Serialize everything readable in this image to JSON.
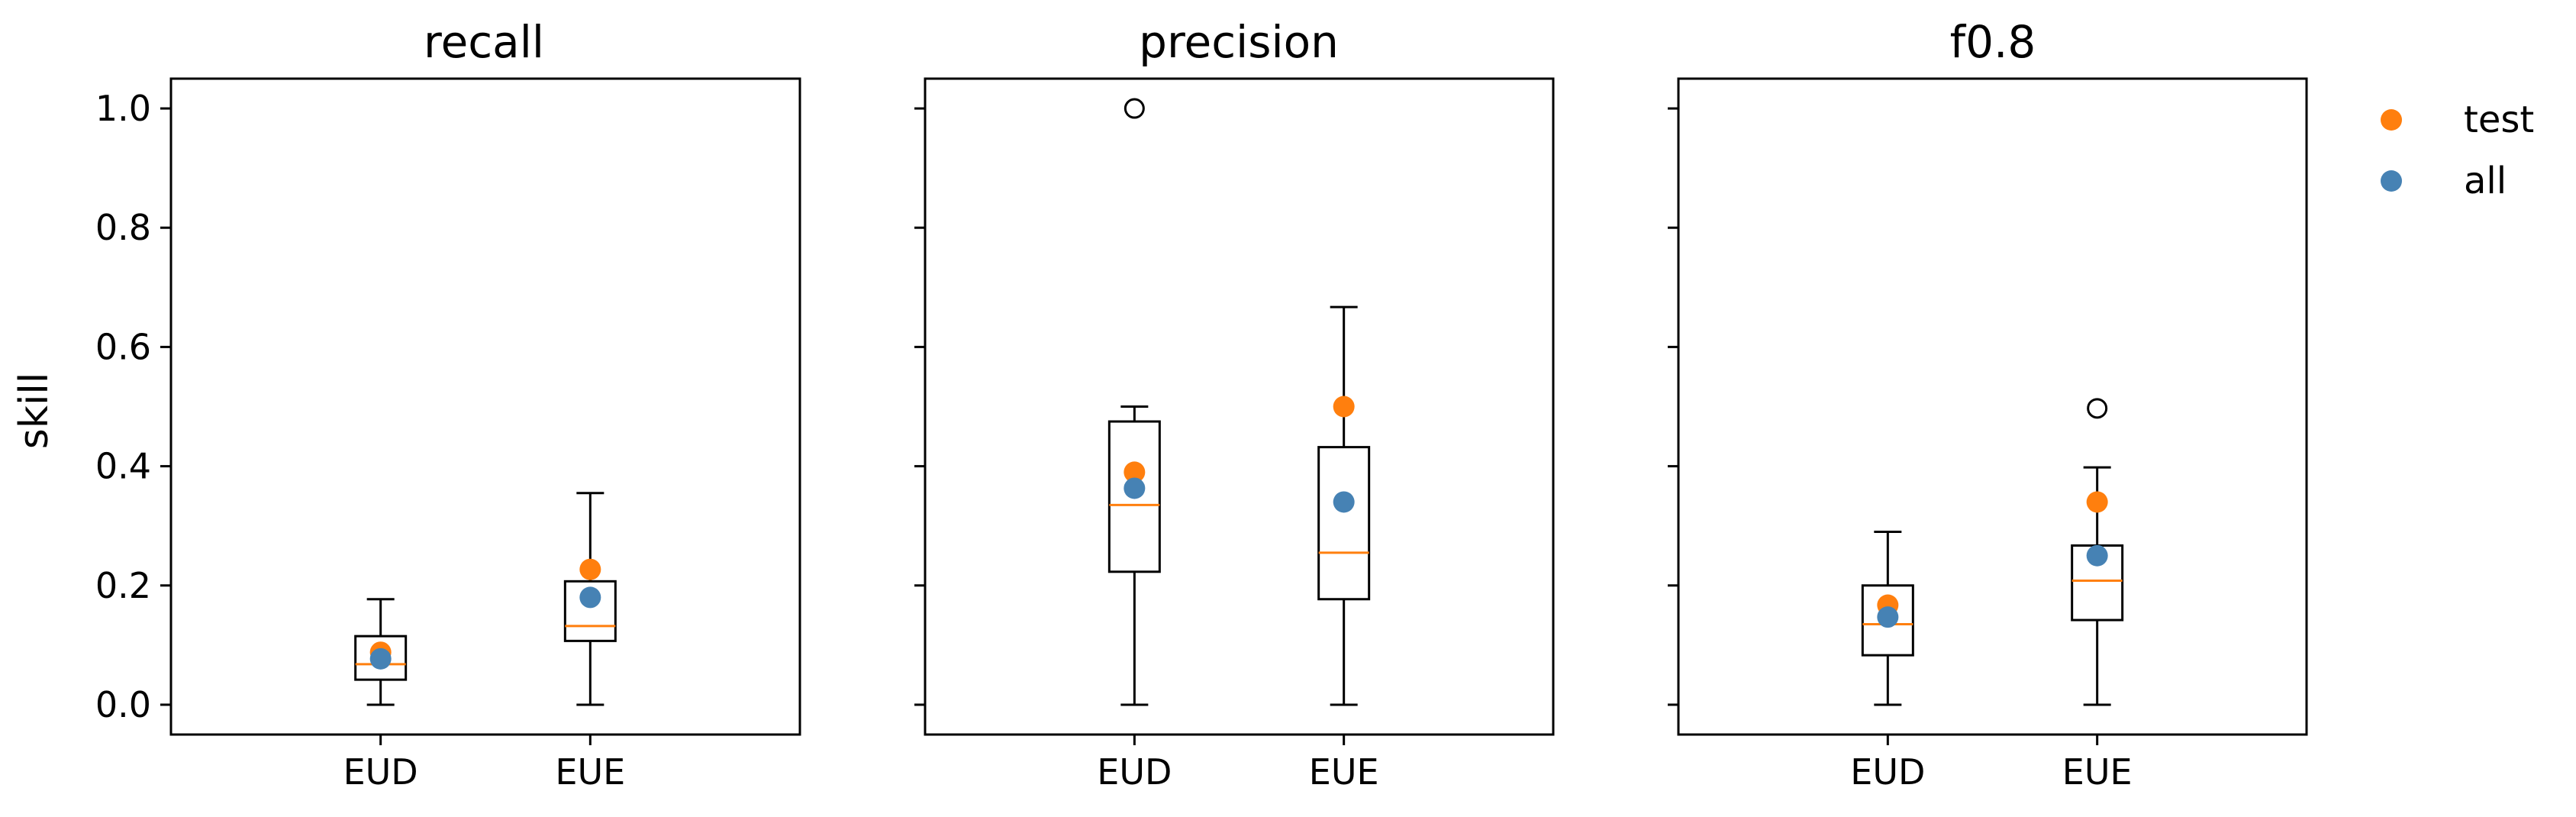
{
  "chart_data": [
    {
      "type": "box",
      "title": "recall",
      "ylabel": "skill",
      "categories": [
        "EUD",
        "EUE"
      ],
      "ylim": [
        -0.05,
        1.05
      ],
      "yticks": [
        "0.0",
        "0.2",
        "0.4",
        "0.6",
        "0.8",
        "1.0"
      ],
      "boxes": [
        {
          "category": "EUD",
          "whislo": 0.0,
          "q1": 0.042,
          "median": 0.068,
          "q3": 0.115,
          "whishi": 0.177,
          "fliers": []
        },
        {
          "category": "EUE",
          "whislo": 0.0,
          "q1": 0.107,
          "median": 0.132,
          "q3": 0.207,
          "whishi": 0.355,
          "fliers": []
        }
      ],
      "series": [
        {
          "name": "test",
          "color": "#ff7f0e",
          "values": [
            0.088,
            0.227
          ]
        },
        {
          "name": "all",
          "color": "#4682b4",
          "values": [
            0.077,
            0.18
          ]
        }
      ]
    },
    {
      "type": "box",
      "title": "precision",
      "categories": [
        "EUD",
        "EUE"
      ],
      "ylim": [
        -0.05,
        1.05
      ],
      "boxes": [
        {
          "category": "EUD",
          "whislo": 0.0,
          "q1": 0.223,
          "median": 0.335,
          "q3": 0.475,
          "whishi": 0.5,
          "fliers": [
            1.0
          ]
        },
        {
          "category": "EUE",
          "whislo": 0.0,
          "q1": 0.177,
          "median": 0.255,
          "q3": 0.432,
          "whishi": 0.667,
          "fliers": []
        }
      ],
      "series": [
        {
          "name": "test",
          "color": "#ff7f0e",
          "values": [
            0.39,
            0.5
          ]
        },
        {
          "name": "all",
          "color": "#4682b4",
          "values": [
            0.363,
            0.34
          ]
        }
      ]
    },
    {
      "type": "box",
      "title": "f0.8",
      "categories": [
        "EUD",
        "EUE"
      ],
      "ylim": [
        -0.05,
        1.05
      ],
      "boxes": [
        {
          "category": "EUD",
          "whislo": 0.0,
          "q1": 0.083,
          "median": 0.135,
          "q3": 0.2,
          "whishi": 0.29,
          "fliers": []
        },
        {
          "category": "EUE",
          "whislo": 0.0,
          "q1": 0.142,
          "median": 0.208,
          "q3": 0.267,
          "whishi": 0.398,
          "fliers": [
            0.497
          ]
        }
      ],
      "series": [
        {
          "name": "test",
          "color": "#ff7f0e",
          "values": [
            0.167,
            0.34
          ]
        },
        {
          "name": "all",
          "color": "#4682b4",
          "values": [
            0.147,
            0.25
          ]
        }
      ]
    }
  ],
  "legend": {
    "position": "top-right",
    "items": [
      {
        "label": "test",
        "color": "#ff7f0e"
      },
      {
        "label": "all",
        "color": "#4682b4"
      }
    ]
  },
  "style": {
    "median_color": "#ff7f0e",
    "box_color": "#000000"
  }
}
